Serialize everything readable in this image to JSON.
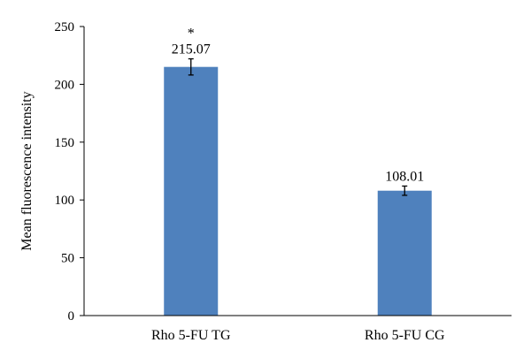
{
  "chart_data": {
    "type": "bar",
    "categories": [
      "Rho 5-FU TG",
      "Rho 5-FU CG"
    ],
    "values": [
      215.07,
      108.01
    ],
    "data_labels": [
      "215.07",
      "108.01"
    ],
    "error": [
      7,
      4
    ],
    "significance": [
      "*",
      ""
    ],
    "title": "",
    "xlabel": "",
    "ylabel": "Mean fluorescence intensity",
    "ylim": [
      0,
      250
    ],
    "yticks": [
      0,
      50,
      100,
      150,
      200,
      250
    ],
    "ytick_labels": [
      "0",
      "50",
      "100",
      "150",
      "200",
      "250"
    ],
    "grid": false,
    "legend": "none",
    "bar_color": "#4f81bd"
  }
}
